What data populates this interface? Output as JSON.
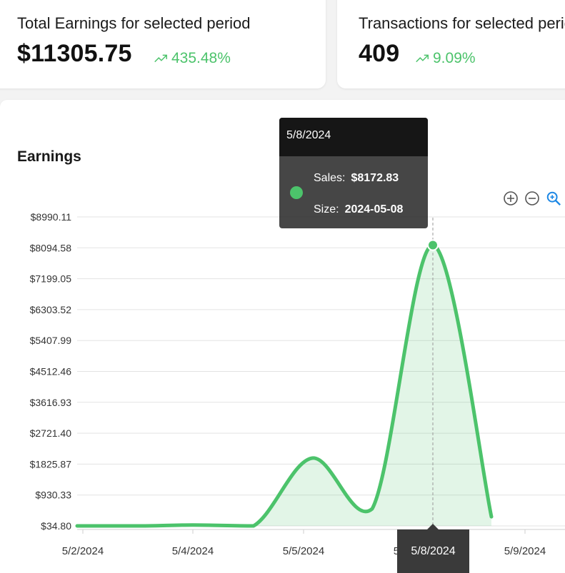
{
  "stats": {
    "earnings": {
      "title": "Total Earnings for selected period",
      "value": "$11305.75",
      "change": "435.48%"
    },
    "transactions": {
      "title": "Transactions for selected period",
      "value": "409",
      "change": "9.09%"
    }
  },
  "chart": {
    "title": "Earnings"
  },
  "toolbar": {
    "icons": [
      "zoom-in-icon",
      "zoom-out-icon",
      "zoom-magnifier-icon"
    ]
  },
  "tooltip": {
    "date": "5/8/2024",
    "sales_label": "Sales:",
    "sales_value": "$8172.83",
    "size_label": "Size:",
    "size_value": "2024-05-08"
  },
  "crosshair_label": "5/8/2024",
  "colors": {
    "series": "#4cc36b",
    "positive": "#4cc36b",
    "icon": "#555555",
    "icon_active": "#1e88e5"
  },
  "chart_data": {
    "type": "area",
    "title": "Earnings",
    "y_ticks": [
      "$8990.11",
      "$8094.58",
      "$7199.05",
      "$6303.52",
      "$5407.99",
      "$4512.46",
      "$3616.93",
      "$2721.40",
      "$1825.87",
      "$930.33",
      "$34.80"
    ],
    "ylim": [
      34.8,
      8990.11
    ],
    "x_ticks": [
      "5/2/2024",
      "5/4/2024",
      "5/5/2024",
      "5/7/2024",
      "5/9/2024"
    ],
    "series": [
      {
        "values": [
          [
            "2024-05-02",
            34.8
          ],
          [
            "2024-05-03",
            34.8
          ],
          [
            "2024-05-04",
            60
          ],
          [
            "2024-05-05",
            34.8
          ],
          [
            "2024-05-05",
            2000
          ],
          [
            "2024-05-07",
            530
          ],
          [
            "2024-05-08",
            8172.83
          ],
          [
            "2024-05-09",
            300
          ]
        ]
      }
    ],
    "grid": true
  }
}
